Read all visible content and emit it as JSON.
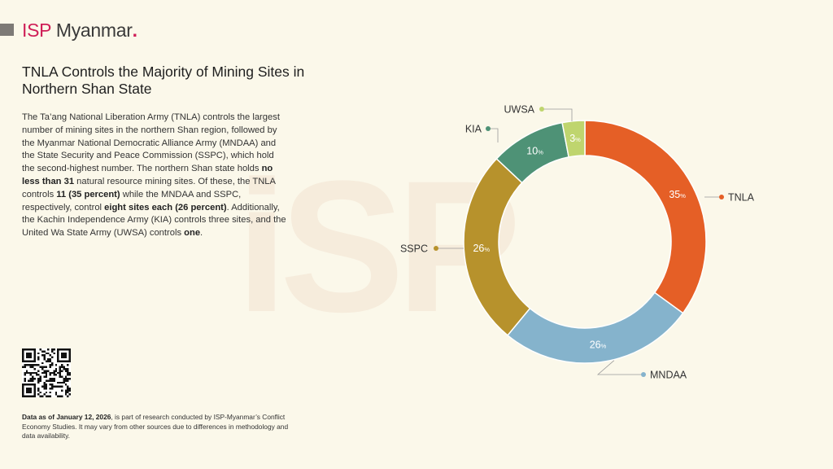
{
  "brand": {
    "isp": "ISP",
    "name": "Myanmar",
    "dot": "."
  },
  "watermark": "iSP",
  "title": "TNLA Controls the Majority of Mining Sites in Northern Shan State",
  "body": [
    {
      "t": "The Ta’ang National Liberation Army (TNLA) controls the largest number of mining sites in the northern Shan region, followed by the Myanmar National Democratic Alliance Army (MNDAA) and the State Security and Peace Commission (SSPC), which hold the second-highest number. The northern Shan state holds ",
      "b": false
    },
    {
      "t": "no less than 31",
      "b": true
    },
    {
      "t": " natural resource mining sites. Of these, the TNLA controls ",
      "b": false
    },
    {
      "t": "11 (35 percent)",
      "b": true
    },
    {
      "t": " while the MNDAA and SSPC, respectively, control ",
      "b": false
    },
    {
      "t": "eight sites each (26 percent)",
      "b": true
    },
    {
      "t": ". Additionally, the Kachin Independence Army (KIA) controls three sites, and the United Wa State Army (UWSA) controls ",
      "b": false
    },
    {
      "t": "one",
      "b": true
    },
    {
      "t": ".",
      "b": false
    }
  ],
  "footnote": [
    {
      "t": "Data as of January 12, 2026",
      "b": true
    },
    {
      "t": ", is part of research conducted by ISP-Myanmar’s Conflict Economy Studies. It may vary from other sources due to differences in methodology and data availability.",
      "b": false
    }
  ],
  "chart_data": {
    "type": "pie",
    "title": "TNLA Controls the Majority of Mining Sites in Northern Shan State",
    "unit": "%",
    "start_group": "TNLA",
    "series": [
      {
        "name": "TNLA",
        "label": "35",
        "value": 35,
        "sites": 11,
        "color": "#e55f26"
      },
      {
        "name": "MNDAA",
        "label": "26",
        "value": 26,
        "sites": 8,
        "color": "#85b3cc"
      },
      {
        "name": "SSPC",
        "label": "26",
        "value": 26,
        "sites": 8,
        "color": "#b7922c"
      },
      {
        "name": "KIA",
        "label": "10",
        "value": 10,
        "sites": 3,
        "color": "#4e9276"
      },
      {
        "name": "UWSA",
        "label": "3",
        "value": 3,
        "sites": 1,
        "color": "#bfd56e"
      }
    ]
  }
}
